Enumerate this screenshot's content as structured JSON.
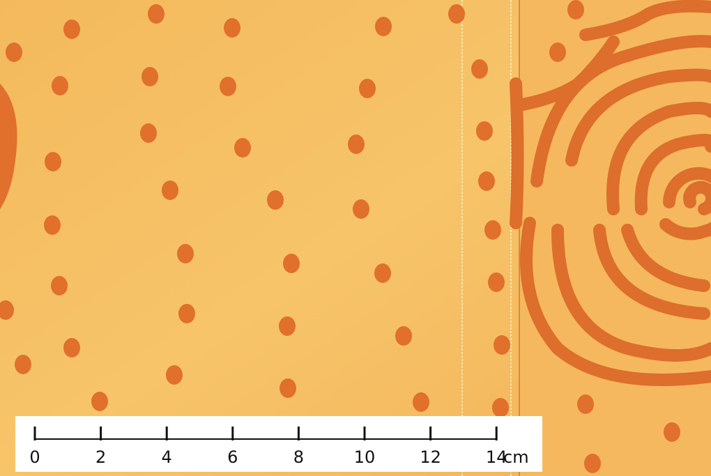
{
  "scale_bar": {
    "ticks": [
      0,
      2,
      4,
      6,
      8,
      10,
      12,
      14
    ],
    "unit": "cm"
  }
}
